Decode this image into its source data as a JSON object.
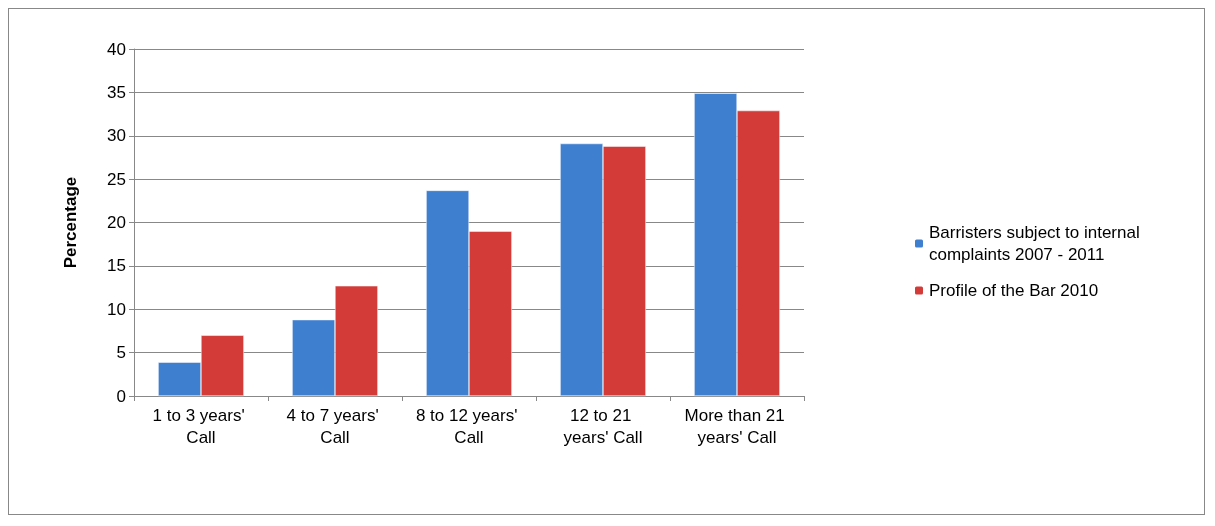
{
  "chart_data": {
    "type": "bar",
    "ylabel": "Percentage",
    "categories": [
      "1 to 3 years' Call",
      "4 to 7 years' Call",
      "8 to 12 years' Call",
      "12 to 21 years' Call",
      "More than 21 years' Call"
    ],
    "series": [
      {
        "name": "Barristers subject to internal complaints 2007 - 2011",
        "color": "#3f7fd0",
        "values": [
          3.9,
          8.8,
          23.7,
          29.1,
          34.9
        ]
      },
      {
        "name": "Profile of the Bar 2010",
        "color": "#d23b38",
        "values": [
          7.0,
          12.7,
          19.0,
          28.8,
          32.9
        ]
      }
    ],
    "ylim": [
      0,
      40
    ],
    "yticks": [
      0,
      5,
      10,
      15,
      20,
      25,
      30,
      35,
      40
    ],
    "grid": "y",
    "legend": "right"
  }
}
